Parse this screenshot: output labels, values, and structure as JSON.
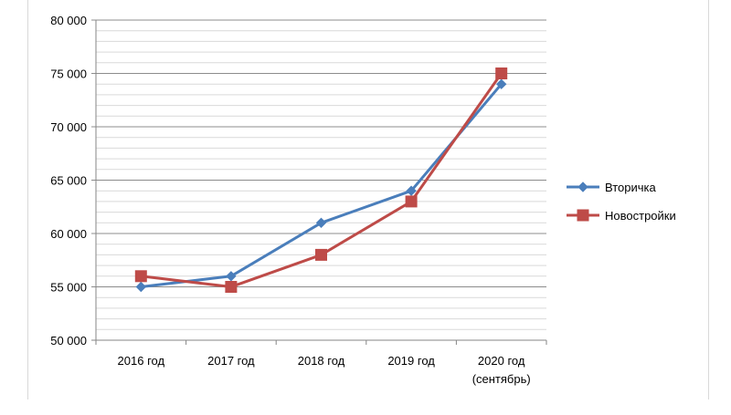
{
  "chart_data": {
    "type": "line",
    "title": "",
    "xlabel": "",
    "ylabel": "",
    "categories": [
      [
        "2016 год"
      ],
      [
        "2017 год"
      ],
      [
        "2018 год"
      ],
      [
        "2019 год"
      ],
      [
        "2020 год",
        "(сентябрь)"
      ]
    ],
    "y_ticks": [
      "50 000",
      "55 000",
      "60 000",
      "65 000",
      "70 000",
      "75 000",
      "80 000"
    ],
    "ylim": [
      50000,
      80000
    ],
    "y_tick_values": [
      50000,
      55000,
      60000,
      65000,
      70000,
      75000,
      80000
    ],
    "minor_grid_step": 1000,
    "grid": true,
    "legend_position": "right",
    "series": [
      {
        "name": "Вторичка",
        "values": [
          55000,
          56000,
          61000,
          64000,
          74000
        ],
        "color": "#4a7ebb",
        "marker": "diamond"
      },
      {
        "name": "Новостройки",
        "values": [
          56000,
          55000,
          58000,
          63000,
          75000
        ],
        "color": "#be4b48",
        "marker": "square"
      }
    ]
  }
}
